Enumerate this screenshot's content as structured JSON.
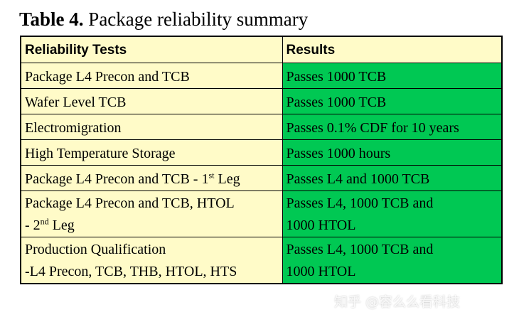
{
  "caption": {
    "label": "Table 4.",
    "title": "Package reliability summary"
  },
  "table": {
    "headers": [
      "Reliability Tests",
      "Results"
    ],
    "rows": [
      {
        "test": "Package L4 Precon and TCB",
        "result": "Passes 1000 TCB"
      },
      {
        "test": "Wafer Level TCB",
        "result": "Passes 1000 TCB"
      },
      {
        "test": "Electromigration",
        "result": "Passes 0.1% CDF for 10 years"
      },
      {
        "test": "High Temperature Storage",
        "result": "Passes 1000 hours"
      },
      {
        "test_pre": "Package L4 Precon and TCB - 1",
        "test_sup": "st",
        "test_post": " Leg",
        "result": "Passes L4 and 1000 TCB"
      },
      {
        "test_line1": "Package L4 Precon and TCB, HTOL",
        "test_pre": "- 2",
        "test_sup": "nd",
        "test_post": " Leg",
        "result_line1": "Passes L4, 1000 TCB and",
        "result_line2": "1000 HTOL"
      },
      {
        "test_line1": "Production Qualification",
        "test_line2": "-L4 Precon, TCB, THB, HTOL, HTS",
        "result_line1": "Passes L4, 1000 TCB and",
        "result_line2": "1000 HTOL"
      }
    ]
  },
  "watermark": "知乎 @容么么看科技",
  "colors": {
    "test_bg": "#fffbc8",
    "result_bg": "#00c853"
  }
}
